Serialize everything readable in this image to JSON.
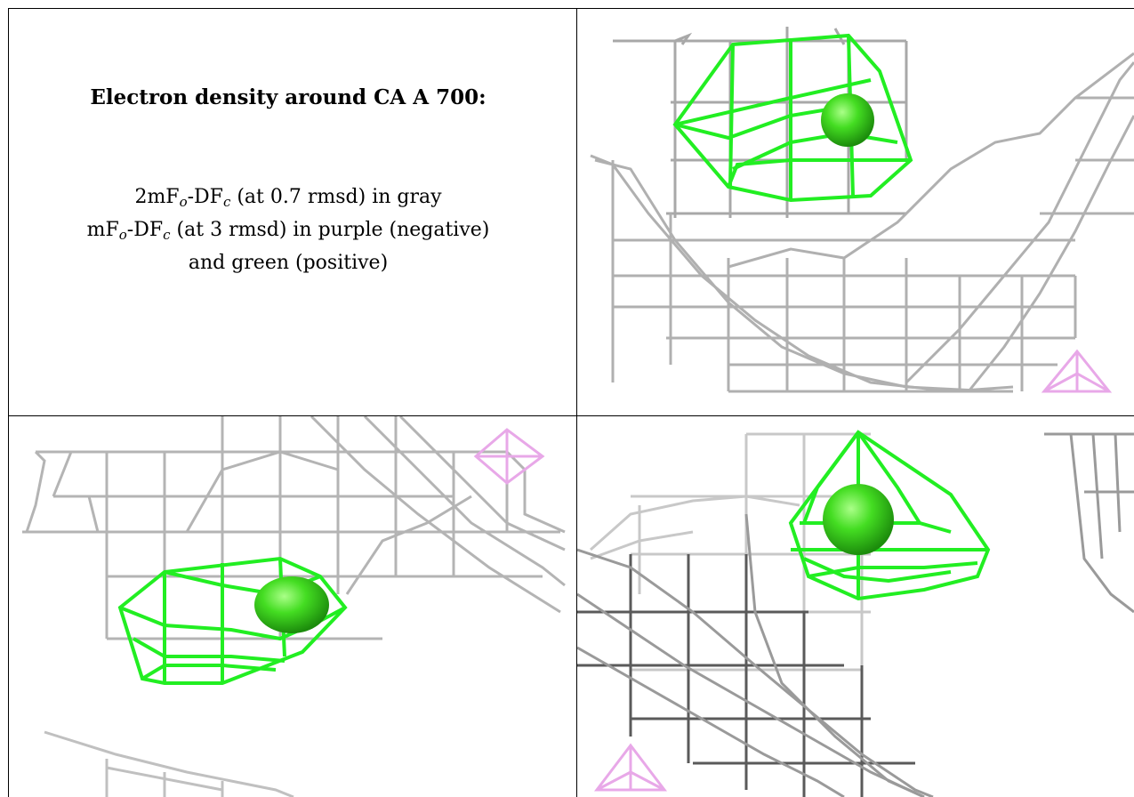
{
  "title": "Electron density around CA A 700:",
  "legend": {
    "line1": {
      "pre": "2mF",
      "sub1": "o",
      "mid": "-DF",
      "sub2": "c",
      "post": " (at 0.7 rmsd) in gray"
    },
    "line2": {
      "pre": "mF",
      "sub1": "o",
      "mid": "-DF",
      "sub2": "c",
      "post": " (at 3 rmsd) in purple (negative)"
    },
    "line3": "and green (positive)"
  },
  "colors": {
    "positive_mesh": "#22ee22",
    "negative_mesh": "#e8a8e8",
    "density_mesh": "#9a9a9a",
    "sphere": "#44dd22",
    "border": "#000000"
  }
}
